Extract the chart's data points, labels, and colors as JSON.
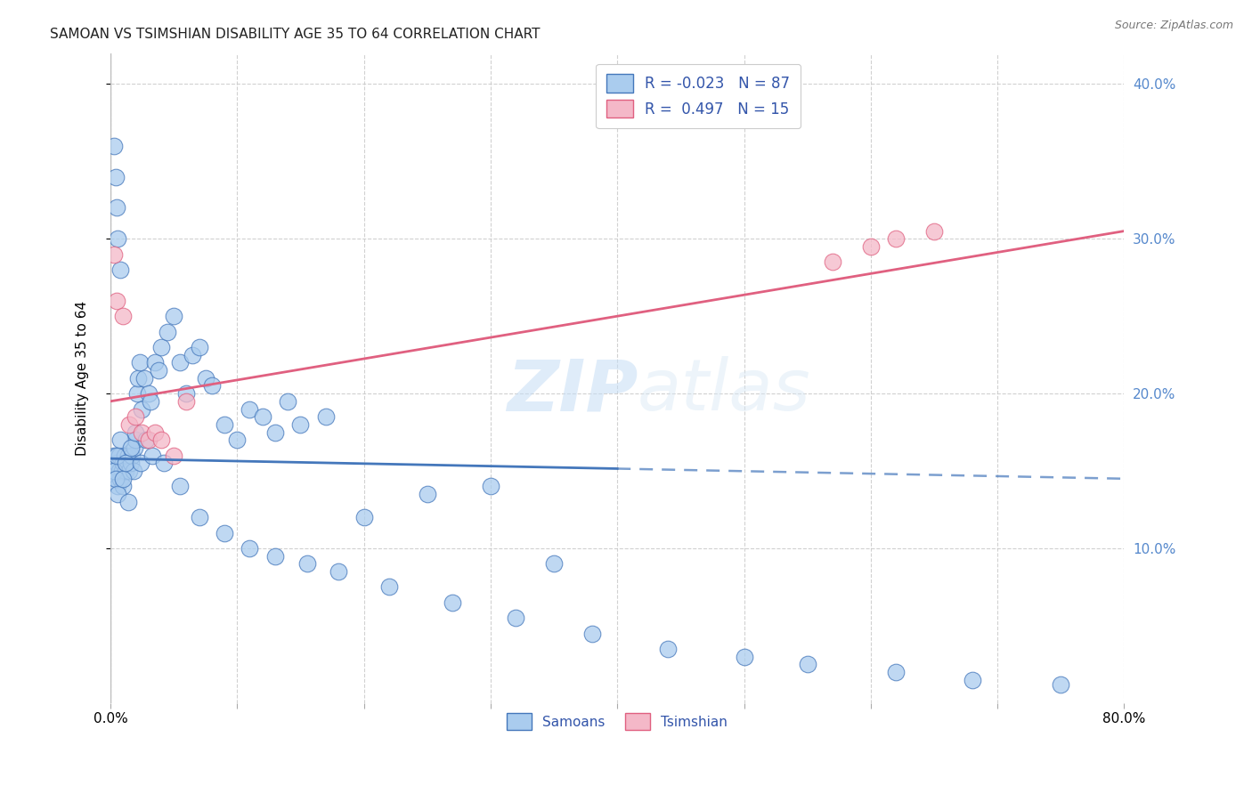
{
  "title": "SAMOAN VS TSIMSHIAN DISABILITY AGE 35 TO 64 CORRELATION CHART",
  "source": "Source: ZipAtlas.com",
  "ylabel": "Disability Age 35 to 64",
  "x_tick_values": [
    0,
    10,
    20,
    30,
    40,
    50,
    60,
    70,
    80
  ],
  "y_tick_values": [
    10,
    20,
    30,
    40
  ],
  "xlim": [
    0,
    80
  ],
  "ylim": [
    0,
    42
  ],
  "watermark_zip": "ZIP",
  "watermark_atlas": "atlas",
  "color_samoans": "#aaccee",
  "color_tsimshian": "#f4b8c8",
  "color_line_samoans": "#4477bb",
  "color_line_tsimshian": "#e06080",
  "color_axis_right": "#5588cc",
  "color_legend_text": "#3355aa",
  "color_rval_neg": "#cc2222",
  "samoans_x": [
    0.3,
    0.4,
    0.5,
    0.5,
    0.6,
    0.7,
    0.7,
    0.8,
    0.9,
    1.0,
    1.0,
    1.1,
    1.2,
    1.3,
    1.4,
    1.5,
    1.6,
    1.7,
    1.8,
    1.9,
    2.0,
    2.1,
    2.2,
    2.3,
    2.5,
    2.7,
    3.0,
    3.2,
    3.5,
    3.8,
    4.0,
    4.5,
    5.0,
    5.5,
    6.0,
    6.5,
    7.0,
    7.5,
    8.0,
    9.0,
    10.0,
    11.0,
    12.0,
    13.0,
    14.0,
    15.0,
    17.0,
    20.0,
    25.0,
    30.0,
    35.0,
    0.3,
    0.4,
    0.5,
    0.6,
    0.8,
    1.0,
    1.2,
    1.4,
    1.6,
    2.0,
    2.4,
    2.8,
    3.3,
    4.2,
    5.5,
    7.0,
    9.0,
    11.0,
    13.0,
    15.5,
    18.0,
    22.0,
    27.0,
    32.0,
    38.0,
    44.0,
    50.0,
    55.0,
    62.0,
    68.0,
    75.0,
    0.3,
    0.4,
    0.5,
    0.6,
    0.8
  ],
  "samoans_y": [
    16.0,
    15.0,
    14.5,
    15.5,
    14.0,
    15.0,
    16.0,
    14.5,
    15.0,
    15.5,
    14.0,
    16.0,
    15.0,
    15.5,
    16.0,
    15.0,
    15.5,
    16.0,
    15.0,
    16.5,
    17.0,
    20.0,
    21.0,
    22.0,
    19.0,
    21.0,
    20.0,
    19.5,
    22.0,
    21.5,
    23.0,
    24.0,
    25.0,
    22.0,
    20.0,
    22.5,
    23.0,
    21.0,
    20.5,
    18.0,
    17.0,
    19.0,
    18.5,
    17.5,
    19.5,
    18.0,
    18.5,
    12.0,
    13.5,
    14.0,
    9.0,
    15.0,
    14.5,
    16.0,
    13.5,
    17.0,
    14.5,
    15.5,
    13.0,
    16.5,
    17.5,
    15.5,
    17.0,
    16.0,
    15.5,
    14.0,
    12.0,
    11.0,
    10.0,
    9.5,
    9.0,
    8.5,
    7.5,
    6.5,
    5.5,
    4.5,
    3.5,
    3.0,
    2.5,
    2.0,
    1.5,
    1.2,
    36.0,
    34.0,
    32.0,
    30.0,
    28.0
  ],
  "tsimshian_x": [
    0.3,
    0.5,
    1.0,
    1.5,
    2.0,
    2.5,
    3.0,
    3.5,
    4.0,
    5.0,
    6.0,
    57.0,
    60.0,
    62.0,
    65.0
  ],
  "tsimshian_y": [
    29.0,
    26.0,
    25.0,
    18.0,
    18.5,
    17.5,
    17.0,
    17.5,
    17.0,
    16.0,
    19.5,
    28.5,
    29.5,
    30.0,
    30.5
  ],
  "samoan_line_x_solid_end": 40,
  "samoan_line_y_at_0": 15.8,
  "samoan_line_y_at_80": 14.5,
  "tsimshian_line_y_at_0": 19.5,
  "tsimshian_line_y_at_80": 30.5,
  "bottom_labels": [
    "Samoans",
    "Tsimshian"
  ],
  "background_color": "#ffffff",
  "grid_color": "#cccccc",
  "legend_r1": "R = -0.023",
  "legend_n1": "N = 87",
  "legend_r2": "R =  0.497",
  "legend_n2": "N = 15"
}
